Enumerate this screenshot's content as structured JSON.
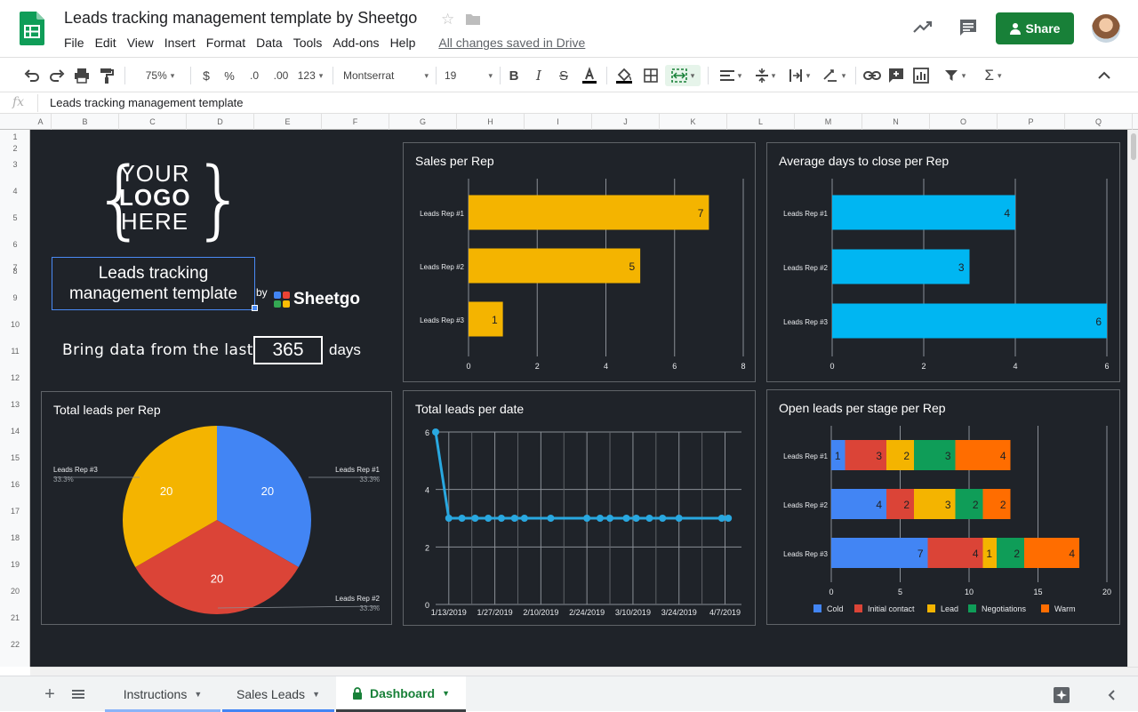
{
  "header": {
    "doc_title": "Leads tracking management template by Sheetgo",
    "saved_status": "All changes saved in Drive",
    "share_label": "Share"
  },
  "menu": [
    "File",
    "Edit",
    "View",
    "Insert",
    "Format",
    "Data",
    "Tools",
    "Add-ons",
    "Help"
  ],
  "toolbar": {
    "zoom": "75%",
    "currency": "$",
    "percent": "%",
    "dec_less": ".0",
    "dec_more": ".00",
    "format_more": "123",
    "font": "Montserrat",
    "font_size": "19",
    "bold": "B",
    "italic": "I",
    "strike": "S",
    "sum": "Σ"
  },
  "formula_bar": {
    "fx": "fx",
    "content": "Leads tracking management template"
  },
  "columns": [
    "A",
    "B",
    "C",
    "D",
    "E",
    "F",
    "G",
    "H",
    "I",
    "J",
    "K",
    "L",
    "M",
    "N",
    "O",
    "P",
    "Q"
  ],
  "rows": [
    "1",
    "2",
    "3",
    "4",
    "5",
    "6",
    "7",
    "8",
    "9",
    "10",
    "11",
    "12",
    "13",
    "14",
    "15",
    "16",
    "17",
    "18",
    "19",
    "20",
    "21",
    "22"
  ],
  "dashboard": {
    "logo": {
      "line1": "YOUR",
      "line2": "LOGO",
      "line3": "HERE"
    },
    "template_title": "Leads tracking management template",
    "by": "by",
    "brand": "Sheetgo",
    "bring_label": "Bring data from the last",
    "days_value": "365",
    "days_label": "days"
  },
  "sheets": [
    {
      "label": "Instructions",
      "color": "#8ab4f8"
    },
    {
      "label": "Sales Leads",
      "color": "#4285f4"
    },
    {
      "label": "Dashboard",
      "color": "#3c4043"
    }
  ],
  "chart_data": [
    {
      "type": "bar",
      "title": "Sales per Rep",
      "categories": [
        "Leads Rep #1",
        "Leads Rep #2",
        "Leads Rep #3"
      ],
      "values": [
        7,
        5,
        1
      ],
      "xlim": [
        0,
        8
      ],
      "xticks": [
        0,
        2,
        4,
        6,
        8
      ],
      "color": "#f4b400",
      "orientation": "horizontal"
    },
    {
      "type": "bar",
      "title": "Average days to close per Rep",
      "categories": [
        "Leads Rep #1",
        "Leads Rep #2",
        "Leads Rep #3"
      ],
      "values": [
        4,
        3,
        6
      ],
      "xlim": [
        0,
        6
      ],
      "xticks": [
        0,
        2,
        4,
        6
      ],
      "color": "#00b6f2",
      "orientation": "horizontal"
    },
    {
      "type": "pie",
      "title": "Total leads per Rep",
      "slices": [
        {
          "label": "Leads Rep #1",
          "value": 20,
          "pct": "33.3%",
          "color": "#4285f4"
        },
        {
          "label": "Leads Rep #2",
          "value": 20,
          "pct": "33.3%",
          "color": "#db4437"
        },
        {
          "label": "Leads Rep #3",
          "value": 20,
          "pct": "33.3%",
          "color": "#f4b400"
        }
      ]
    },
    {
      "type": "line",
      "title": "Total leads per date",
      "x": [
        "2019-01-09",
        "2019-01-13",
        "2019-01-17",
        "2019-01-21",
        "2019-01-25",
        "2019-01-29",
        "2019-02-02",
        "2019-02-05",
        "2019-02-13",
        "2019-02-24",
        "2019-02-28",
        "2019-03-03",
        "2019-03-08",
        "2019-03-11",
        "2019-03-15",
        "2019-03-19",
        "2019-03-24",
        "2019-04-06",
        "2019-04-08"
      ],
      "values": [
        6,
        3,
        3,
        3,
        3,
        3,
        3,
        3,
        3,
        3,
        3,
        3,
        3,
        3,
        3,
        3,
        3,
        3,
        3
      ],
      "ylim": [
        0,
        6
      ],
      "yticks": [
        0,
        2,
        4,
        6
      ],
      "xtick_labels": [
        "1/13/2019",
        "1/27/2019",
        "2/10/2019",
        "2/24/2019",
        "3/10/2019",
        "3/24/2019",
        "4/7/2019"
      ],
      "color": "#29a8e0"
    },
    {
      "type": "bar",
      "title": "Open leads per stage per Rep",
      "stacked": true,
      "orientation": "horizontal",
      "categories": [
        "Leads Rep #1",
        "Leads Rep #2",
        "Leads Rep #3"
      ],
      "series": [
        {
          "name": "Cold",
          "values": [
            1,
            4,
            7
          ],
          "color": "#4285f4"
        },
        {
          "name": "Initial contact",
          "values": [
            3,
            2,
            4
          ],
          "color": "#db4437"
        },
        {
          "name": "Lead",
          "values": [
            2,
            3,
            1
          ],
          "color": "#f4b400"
        },
        {
          "name": "Negotiations",
          "values": [
            3,
            2,
            2
          ],
          "color": "#0f9d58"
        },
        {
          "name": "Warm",
          "values": [
            4,
            2,
            4
          ],
          "color": "#ff6d00"
        }
      ],
      "xlim": [
        0,
        20
      ],
      "xticks": [
        0,
        5,
        10,
        15,
        20
      ]
    }
  ]
}
